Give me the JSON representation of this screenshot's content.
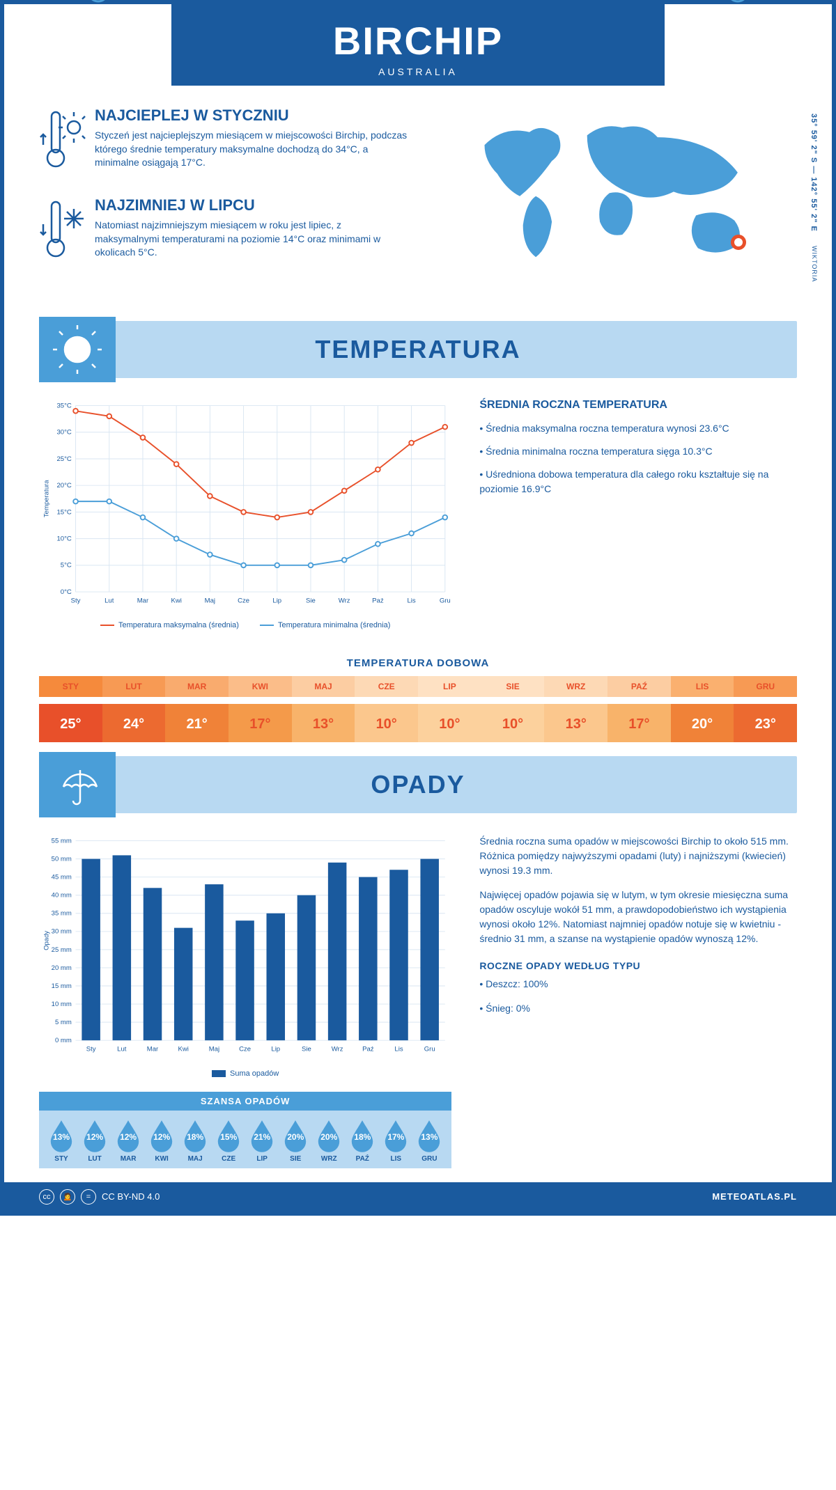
{
  "header": {
    "city": "BIRCHIP",
    "country": "AUSTRALIA"
  },
  "coords": "35° 59' 2\" S — 142° 55' 2\" E",
  "region": "WIKTORIA",
  "facts": {
    "hot": {
      "title": "NAJCIEPLEJ W STYCZNIU",
      "text": "Styczeń jest najcieplejszym miesiącem w miejscowości Birchip, podczas którego średnie temperatury maksymalne dochodzą do 34°C, a minimalne osiągają 17°C."
    },
    "cold": {
      "title": "NAJZIMNIEJ W LIPCU",
      "text": "Natomiast najzimniejszym miesiącem w roku jest lipiec, z maksymalnymi temperaturami na poziomie 14°C oraz minimami w okolicach 5°C."
    }
  },
  "map_marker": {
    "left_pct": 82,
    "top_pct": 80
  },
  "sections": {
    "temperature": "TEMPERATURA",
    "precip": "OPADY"
  },
  "temp_chart": {
    "months": [
      "Sty",
      "Lut",
      "Mar",
      "Kwi",
      "Maj",
      "Cze",
      "Lip",
      "Sie",
      "Wrz",
      "Paź",
      "Lis",
      "Gru"
    ],
    "max_series": [
      34,
      33,
      29,
      24,
      18,
      15,
      14,
      15,
      19,
      23,
      28,
      31
    ],
    "min_series": [
      17,
      17,
      14,
      10,
      7,
      5,
      5,
      5,
      6,
      9,
      11,
      14
    ],
    "ylim": [
      0,
      35
    ],
    "ystep": 5,
    "max_color": "#e8502a",
    "min_color": "#4a9ed8",
    "grid_color": "#d9e6f2",
    "bg": "#ffffff",
    "y_title": "Temperatura",
    "legend_max": "Temperatura maksymalna (średnia)",
    "legend_min": "Temperatura minimalna (średnia)"
  },
  "temp_info": {
    "heading": "ŚREDNIA ROCZNA TEMPERATURA",
    "bullets": [
      "• Średnia maksymalna roczna temperatura wynosi 23.6°C",
      "• Średnia minimalna roczna temperatura sięga 10.3°C",
      "• Uśredniona dobowa temperatura dla całego roku kształtuje się na poziomie 16.9°C"
    ]
  },
  "daily": {
    "title": "TEMPERATURA DOBOWA",
    "months": [
      "STY",
      "LUT",
      "MAR",
      "KWI",
      "MAJ",
      "CZE",
      "LIP",
      "SIE",
      "WRZ",
      "PAŹ",
      "LIS",
      "GRU"
    ],
    "values": [
      "25°",
      "24°",
      "21°",
      "17°",
      "13°",
      "10°",
      "10°",
      "10°",
      "13°",
      "17°",
      "20°",
      "23°"
    ],
    "head_colors": [
      "#f58a3c",
      "#f79a54",
      "#f9ab6e",
      "#fbbd89",
      "#fccda2",
      "#fdd9b5",
      "#fee1c3",
      "#fee1c3",
      "#fdd9b5",
      "#fccda2",
      "#fab06f",
      "#f79a54"
    ],
    "val_colors": [
      "#e8502a",
      "#ec6a30",
      "#f08238",
      "#f49a4a",
      "#f8b36a",
      "#fbc78d",
      "#fcd19d",
      "#fcd19d",
      "#fbc78d",
      "#f8b36a",
      "#f08238",
      "#ec6a30"
    ],
    "text_on_pale": "#e8502a",
    "text_on_dark": "#ffffff",
    "dark_threshold": 19
  },
  "precip_chart": {
    "months": [
      "Sty",
      "Lut",
      "Mar",
      "Kwi",
      "Maj",
      "Cze",
      "Lip",
      "Sie",
      "Wrz",
      "Paź",
      "Lis",
      "Gru"
    ],
    "values": [
      50,
      51,
      42,
      31,
      43,
      33,
      35,
      40,
      49,
      45,
      47,
      50
    ],
    "ylim": [
      0,
      55
    ],
    "ystep": 5,
    "bar_color": "#1a5a9e",
    "grid_color": "#d9e6f2",
    "y_title": "Opady",
    "legend": "Suma opadów"
  },
  "precip_text": {
    "p1": "Średnia roczna suma opadów w miejscowości Birchip to około 515 mm. Różnica pomiędzy najwyższymi opadami (luty) i najniższymi (kwiecień) wynosi 19.3 mm.",
    "p2": "Najwięcej opadów pojawia się w lutym, w tym okresie miesięczna suma opadów oscyluje wokół 51 mm, a prawdopodobieństwo ich wystąpienia wynosi około 12%. Natomiast najmniej opadów notuje się w kwietniu - średnio 31 mm, a szanse na wystąpienie opadów wynoszą 12%.",
    "type_heading": "ROCZNE OPADY WEDŁUG TYPU",
    "type_bullets": [
      "• Deszcz: 100%",
      "• Śnieg: 0%"
    ]
  },
  "chance": {
    "title": "SZANSA OPADÓW",
    "months": [
      "STY",
      "LUT",
      "MAR",
      "KWI",
      "MAJ",
      "CZE",
      "LIP",
      "SIE",
      "WRZ",
      "PAŹ",
      "LIS",
      "GRU"
    ],
    "values": [
      "13%",
      "12%",
      "12%",
      "12%",
      "18%",
      "15%",
      "21%",
      "20%",
      "20%",
      "18%",
      "17%",
      "13%"
    ],
    "drop_color": "#4a9ed8"
  },
  "footer": {
    "license": "CC BY-ND 4.0",
    "site": "METEOATLAS.PL"
  }
}
